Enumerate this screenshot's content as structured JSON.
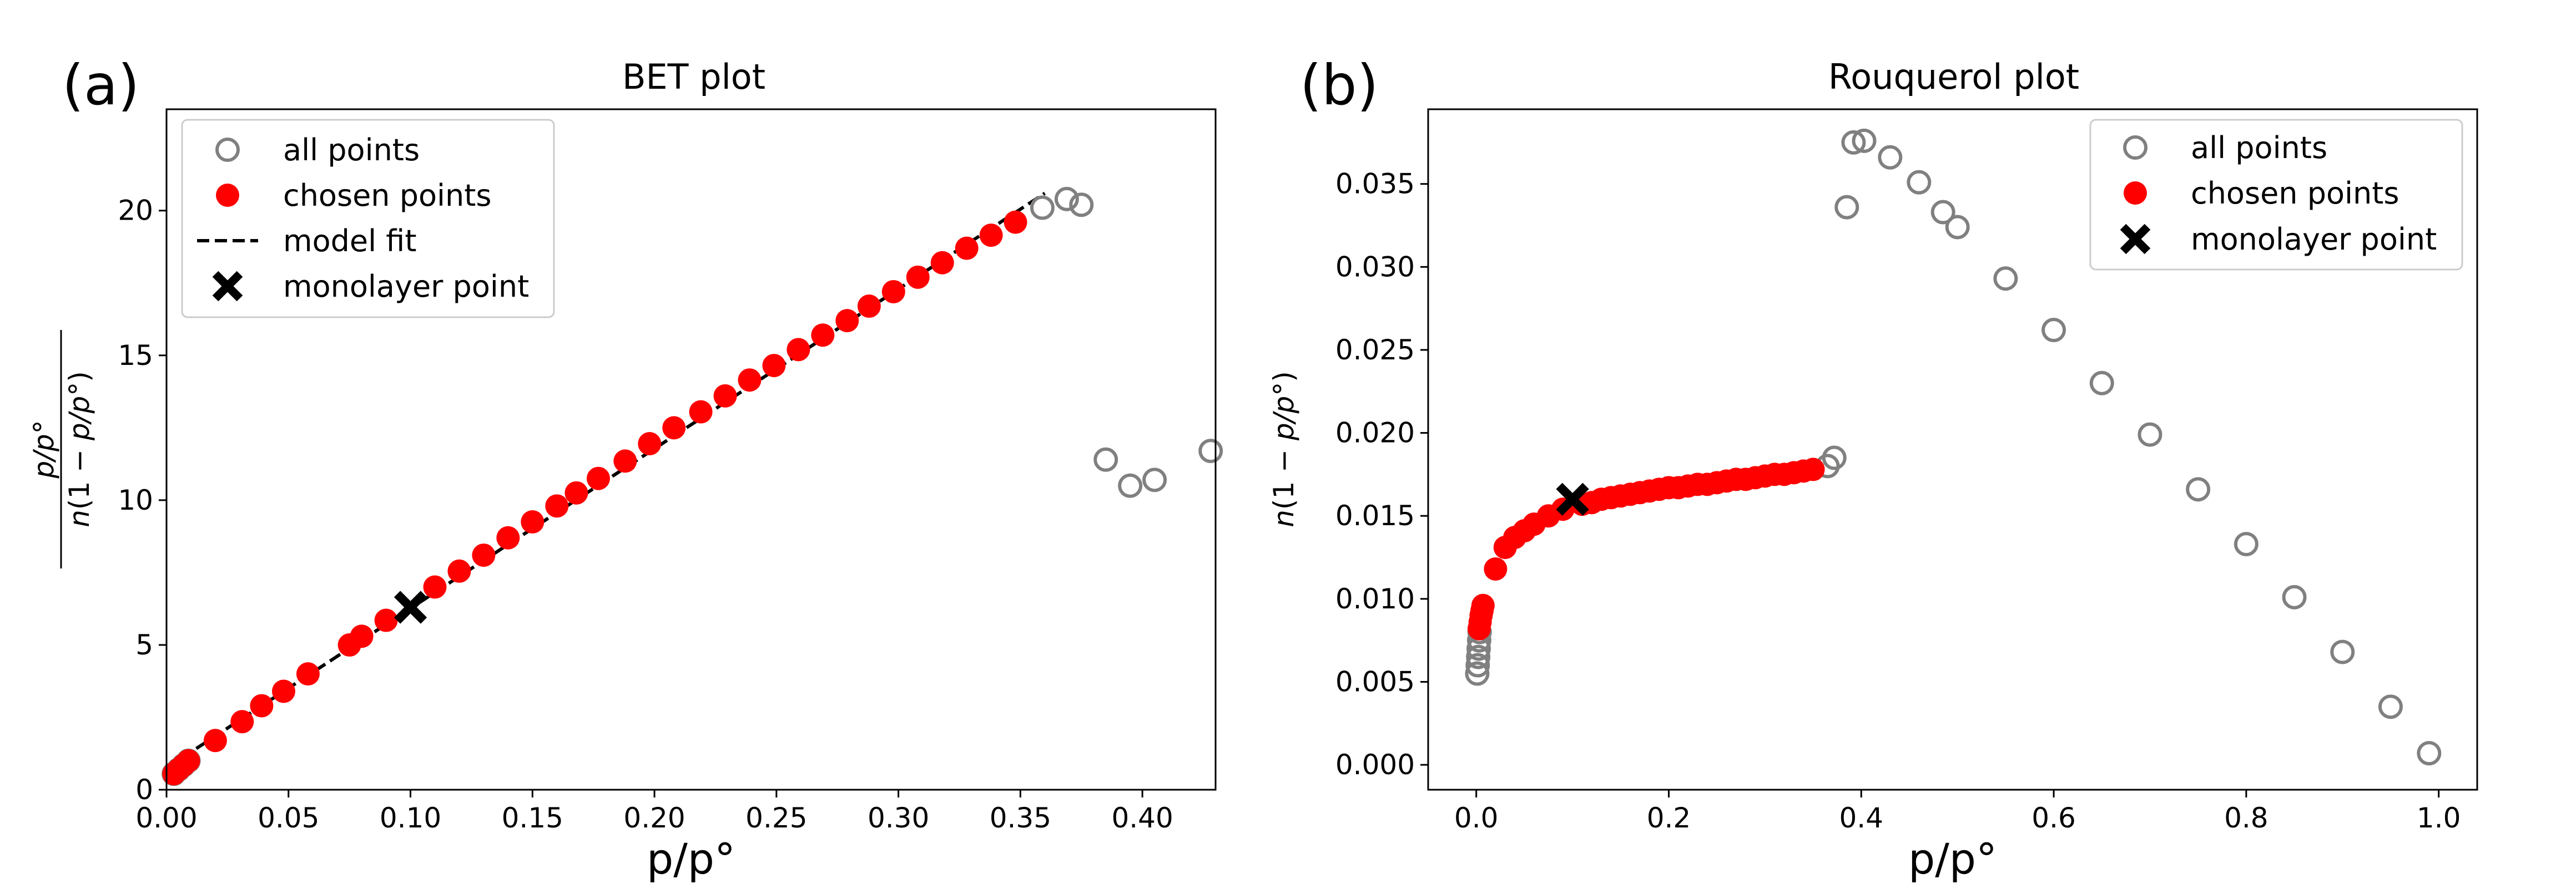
{
  "colors": {
    "all_points": "#808080",
    "chosen_points": "#ff0000",
    "model_fit": "#000000",
    "monolayer": "#000000"
  },
  "chart_data": [
    {
      "type": "scatter",
      "panel_label": "(a)",
      "title": "BET plot",
      "xlabel": "p/p°",
      "ylabel": "p/p° / n(1 − p/p°)",
      "xlim": [
        0.0,
        0.43
      ],
      "ylim": [
        0,
        23.5
      ],
      "xticks": [
        0.0,
        0.05,
        0.1,
        0.15,
        0.2,
        0.25,
        0.3,
        0.35,
        0.4
      ],
      "xtick_labels": [
        "0.00",
        "0.05",
        "0.10",
        "0.15",
        "0.20",
        "0.25",
        "0.30",
        "0.35",
        "0.40"
      ],
      "yticks": [
        0,
        5,
        10,
        15,
        20
      ],
      "ytick_labels": [
        "0",
        "5",
        "10",
        "15",
        "20"
      ],
      "grid": false,
      "legend_position": "top-left",
      "legend": [
        "all points",
        "chosen points",
        "model fit",
        "monolayer point"
      ],
      "series": [
        {
          "name": "all points",
          "marker": "open-circle",
          "points": [
            [
              0.003,
              0.55
            ],
            [
              0.005,
              0.7
            ],
            [
              0.007,
              0.85
            ],
            [
              0.009,
              1.0
            ],
            [
              0.359,
              20.1
            ],
            [
              0.369,
              20.4
            ],
            [
              0.375,
              20.2
            ],
            [
              0.385,
              11.4
            ],
            [
              0.395,
              10.5
            ],
            [
              0.405,
              10.7
            ],
            [
              0.428,
              11.7
            ]
          ]
        },
        {
          "name": "chosen points",
          "marker": "filled-circle",
          "points": [
            [
              0.003,
              0.55
            ],
            [
              0.005,
              0.7
            ],
            [
              0.007,
              0.85
            ],
            [
              0.009,
              1.0
            ],
            [
              0.02,
              1.7
            ],
            [
              0.031,
              2.35
            ],
            [
              0.039,
              2.9
            ],
            [
              0.048,
              3.4
            ],
            [
              0.058,
              4.0
            ],
            [
              0.075,
              5.0
            ],
            [
              0.08,
              5.3
            ],
            [
              0.09,
              5.85
            ],
            [
              0.11,
              7.0
            ],
            [
              0.12,
              7.55
            ],
            [
              0.13,
              8.1
            ],
            [
              0.14,
              8.7
            ],
            [
              0.15,
              9.25
            ],
            [
              0.16,
              9.8
            ],
            [
              0.168,
              10.25
            ],
            [
              0.177,
              10.75
            ],
            [
              0.188,
              11.35
            ],
            [
              0.198,
              11.95
            ],
            [
              0.208,
              12.5
            ],
            [
              0.219,
              13.05
            ],
            [
              0.229,
              13.6
            ],
            [
              0.239,
              14.15
            ],
            [
              0.249,
              14.65
            ],
            [
              0.259,
              15.2
            ],
            [
              0.269,
              15.7
            ],
            [
              0.279,
              16.2
            ],
            [
              0.288,
              16.7
            ],
            [
              0.298,
              17.2
            ],
            [
              0.308,
              17.7
            ],
            [
              0.318,
              18.2
            ],
            [
              0.328,
              18.7
            ],
            [
              0.338,
              19.15
            ],
            [
              0.348,
              19.6
            ]
          ]
        },
        {
          "name": "model fit",
          "marker": "dashed-line",
          "points": [
            [
              0.0,
              0.75
            ],
            [
              0.36,
              20.6
            ]
          ]
        },
        {
          "name": "monolayer point",
          "marker": "x",
          "points": [
            [
              0.1,
              6.3
            ]
          ]
        }
      ]
    },
    {
      "type": "scatter",
      "panel_label": "(b)",
      "title": "Rouquerol plot",
      "xlabel": "p/p°",
      "ylabel": "n(1 − p/p°)",
      "xlim": [
        -0.05,
        1.04
      ],
      "ylim": [
        -0.0015,
        0.0395
      ],
      "xticks": [
        0.0,
        0.2,
        0.4,
        0.6,
        0.8,
        1.0
      ],
      "xtick_labels": [
        "0.0",
        "0.2",
        "0.4",
        "0.6",
        "0.8",
        "1.0"
      ],
      "yticks": [
        0.0,
        0.005,
        0.01,
        0.015,
        0.02,
        0.025,
        0.03,
        0.035
      ],
      "ytick_labels": [
        "0.000",
        "0.005",
        "0.010",
        "0.015",
        "0.020",
        "0.025",
        "0.030",
        "0.035"
      ],
      "grid": false,
      "legend_position": "top-right",
      "legend": [
        "all points",
        "chosen points",
        "monolayer point"
      ],
      "series": [
        {
          "name": "all points",
          "marker": "open-circle",
          "points": [
            [
              0.001,
              0.0055
            ],
            [
              0.0015,
              0.006
            ],
            [
              0.002,
              0.0065
            ],
            [
              0.0025,
              0.007
            ],
            [
              0.003,
              0.0075
            ],
            [
              0.0035,
              0.008
            ],
            [
              0.365,
              0.018
            ],
            [
              0.372,
              0.0185
            ],
            [
              0.385,
              0.0336
            ],
            [
              0.392,
              0.0375
            ],
            [
              0.403,
              0.0376
            ],
            [
              0.43,
              0.0366
            ],
            [
              0.46,
              0.0351
            ],
            [
              0.485,
              0.0333
            ],
            [
              0.5,
              0.0324
            ],
            [
              0.55,
              0.0293
            ],
            [
              0.6,
              0.0262
            ],
            [
              0.65,
              0.023
            ],
            [
              0.7,
              0.0199
            ],
            [
              0.75,
              0.0166
            ],
            [
              0.8,
              0.0133
            ],
            [
              0.85,
              0.0101
            ],
            [
              0.9,
              0.0068
            ],
            [
              0.95,
              0.0035
            ],
            [
              0.99,
              0.0007
            ]
          ]
        },
        {
          "name": "chosen points",
          "marker": "filled-circle",
          "points": [
            [
              0.003,
              0.0082
            ],
            [
              0.004,
              0.0086
            ],
            [
              0.005,
              0.009
            ],
            [
              0.006,
              0.0093
            ],
            [
              0.007,
              0.0096
            ],
            [
              0.02,
              0.0118
            ],
            [
              0.03,
              0.0131
            ],
            [
              0.04,
              0.0137
            ],
            [
              0.05,
              0.0141
            ],
            [
              0.06,
              0.0145
            ],
            [
              0.075,
              0.015
            ],
            [
              0.09,
              0.0154
            ],
            [
              0.11,
              0.0157
            ],
            [
              0.12,
              0.0158
            ],
            [
              0.13,
              0.016
            ],
            [
              0.14,
              0.0161
            ],
            [
              0.15,
              0.0162
            ],
            [
              0.16,
              0.0163
            ],
            [
              0.17,
              0.0164
            ],
            [
              0.18,
              0.0165
            ],
            [
              0.19,
              0.0166
            ],
            [
              0.2,
              0.0167
            ],
            [
              0.21,
              0.0167
            ],
            [
              0.22,
              0.0168
            ],
            [
              0.23,
              0.0169
            ],
            [
              0.24,
              0.0169
            ],
            [
              0.25,
              0.017
            ],
            [
              0.26,
              0.0171
            ],
            [
              0.27,
              0.0172
            ],
            [
              0.28,
              0.0172
            ],
            [
              0.29,
              0.0173
            ],
            [
              0.3,
              0.0174
            ],
            [
              0.31,
              0.0175
            ],
            [
              0.32,
              0.0175
            ],
            [
              0.33,
              0.0176
            ],
            [
              0.34,
              0.0177
            ],
            [
              0.35,
              0.0178
            ]
          ]
        },
        {
          "name": "monolayer point",
          "marker": "x",
          "points": [
            [
              0.1,
              0.016
            ]
          ]
        }
      ]
    }
  ]
}
